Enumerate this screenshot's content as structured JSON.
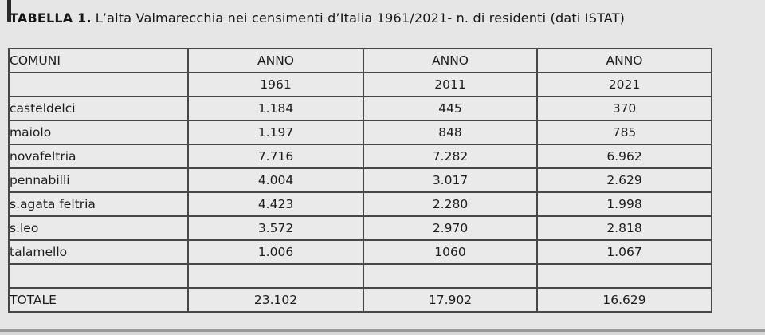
{
  "title": {
    "label": "TABELLA 1.",
    "text": "L’alta Valmarecchia nei censimenti d’Italia 1961/2021- n. di residenti (dati ISTAT)"
  },
  "colors": {
    "page_background": "#e6e6e6",
    "table_background": "#eaeaea",
    "border": "#474747",
    "text": "#1c1c1c"
  },
  "table": {
    "columns": [
      "COMUNI",
      "ANNO",
      "ANNO",
      "ANNO"
    ],
    "years": [
      "1961",
      "2011",
      "2021"
    ],
    "rows": [
      {
        "name": "casteldelci",
        "y1961": "1.184",
        "y2011": "445",
        "y2021": "370"
      },
      {
        "name": "maiolo",
        "y1961": "1.197",
        "y2011": "848",
        "y2021": "785"
      },
      {
        "name": "novafeltria",
        "y1961": "7.716",
        "y2011": "7.282",
        "y2021": "6.962"
      },
      {
        "name": "pennabilli",
        "y1961": "4.004",
        "y2011": "3.017",
        "y2021": "2.629"
      },
      {
        "name": "s.agata feltria",
        "y1961": "4.423",
        "y2011": "2.280",
        "y2021": "1.998"
      },
      {
        "name": "s.leo",
        "y1961": "3.572",
        "y2011": "2.970",
        "y2021": "2.818"
      },
      {
        "name": "talamello",
        "y1961": "1.006",
        "y2011": "1060",
        "y2021": "1.067"
      }
    ],
    "total": {
      "name": "TOTALE",
      "y1961": "23.102",
      "y2011": "17.902",
      "y2021": "16.629"
    }
  }
}
